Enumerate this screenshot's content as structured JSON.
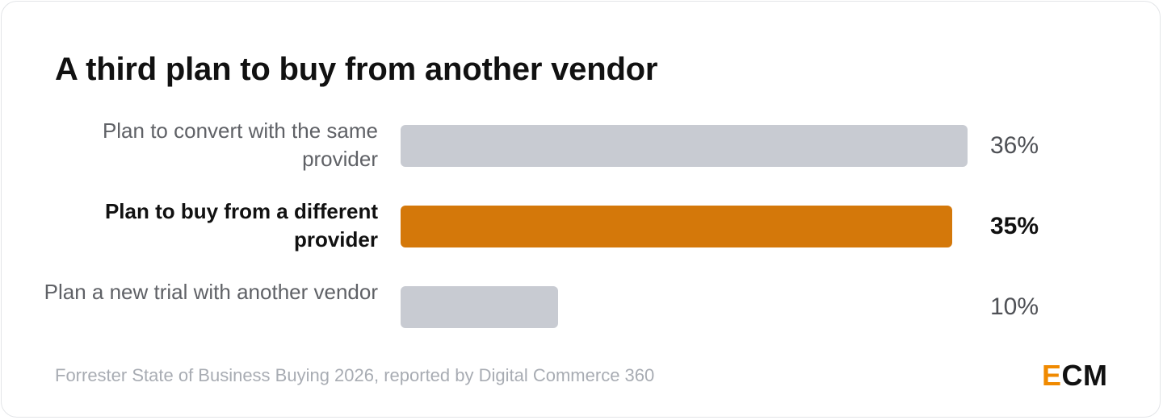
{
  "title": "A third plan to buy from another vendor",
  "chart_data": {
    "type": "bar",
    "orientation": "horizontal",
    "categories": [
      "Plan to convert with the same provider",
      "Plan to buy from a different provider",
      "Plan a new trial with another vendor"
    ],
    "values": [
      36,
      35,
      10
    ],
    "value_labels": [
      "36%",
      "35%",
      "10%"
    ],
    "highlighted": [
      false,
      true,
      false
    ],
    "xlim": [
      0,
      36
    ],
    "grid": false,
    "colors": {
      "default": "#c8cbd2",
      "highlight": "#d4780a"
    }
  },
  "source": "Forrester State of Business Buying 2026, reported by Digital Commerce 360",
  "logo": {
    "accent_letter": "E",
    "rest": "CM",
    "accent_color": "#f08a00"
  }
}
